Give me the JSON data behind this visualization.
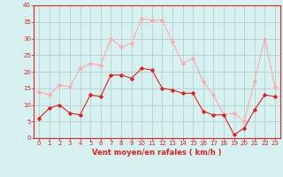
{
  "x": [
    0,
    1,
    2,
    3,
    4,
    5,
    6,
    7,
    8,
    9,
    10,
    11,
    12,
    13,
    14,
    15,
    16,
    17,
    18,
    19,
    20,
    21,
    22,
    23
  ],
  "wind_avg": [
    6,
    9,
    10,
    7.5,
    7,
    13,
    12.5,
    19,
    19,
    18,
    21,
    20.5,
    15,
    14.5,
    13.5,
    13.5,
    8,
    7,
    7,
    1,
    3,
    8.5,
    13,
    12.5
  ],
  "wind_gust": [
    14,
    13,
    16,
    15.5,
    21,
    22.5,
    22,
    30,
    27.5,
    28.5,
    36,
    35.5,
    35.5,
    29,
    22.5,
    24,
    17,
    13,
    7,
    7.5,
    5,
    17,
    30,
    15.5
  ],
  "xlabel": "Vent moyen/en rafales ( km/h )",
  "bg_color": "#d7f0f0",
  "grid_color": "#b0c8c8",
  "line_avg_color": "#dd2222",
  "line_gust_color": "#ffaaaa",
  "marker_color_avg": "#dd2222",
  "marker_color_gust": "#ffaaaa",
  "ylim": [
    0,
    40
  ],
  "xlim_left": -0.5,
  "xlim_right": 23.5,
  "yticks": [
    0,
    5,
    10,
    15,
    20,
    25,
    30,
    35,
    40
  ],
  "xticks": [
    0,
    1,
    2,
    3,
    4,
    5,
    6,
    7,
    8,
    9,
    10,
    11,
    12,
    13,
    14,
    15,
    16,
    17,
    18,
    19,
    20,
    21,
    22,
    23
  ],
  "tick_color": "#dd2222",
  "label_fontsize": 5.0,
  "xlabel_fontsize": 6.0
}
